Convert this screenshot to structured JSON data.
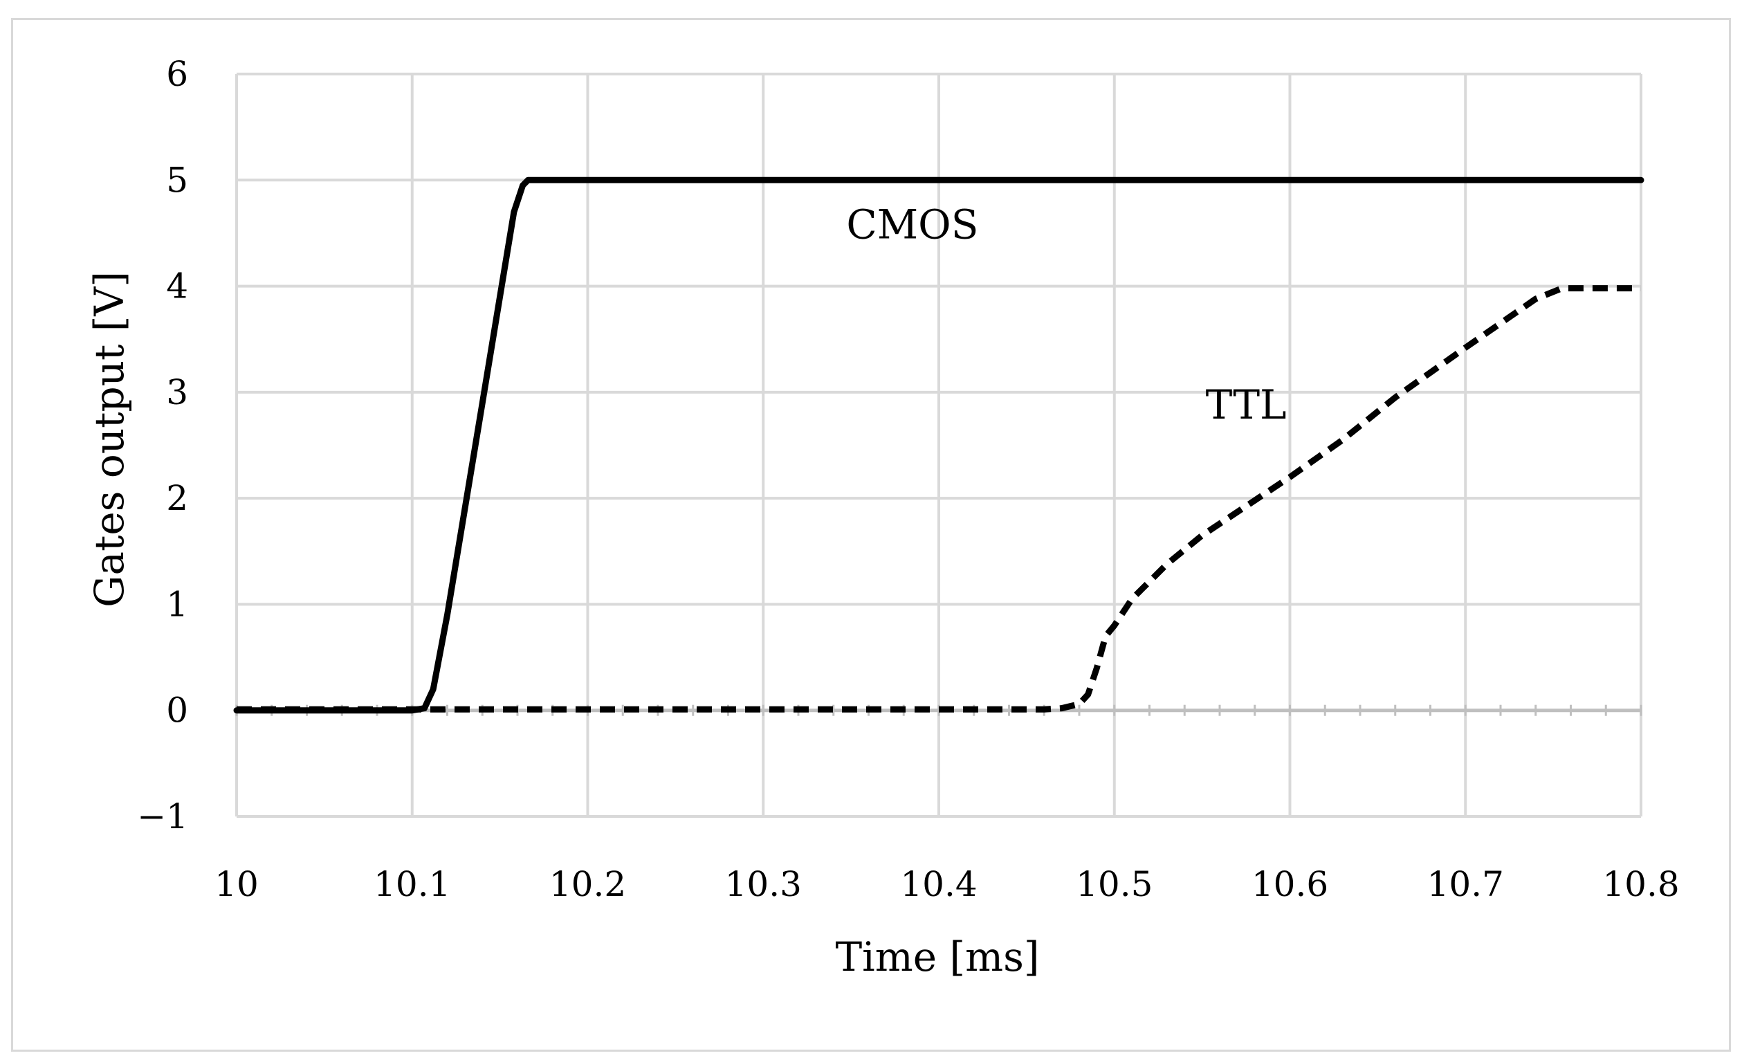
{
  "chart_data": {
    "type": "line",
    "title": "",
    "xlabel": "Time [ms]",
    "ylabel": "Gates output [V]",
    "xlim": [
      10,
      10.8
    ],
    "ylim": [
      -1,
      6
    ],
    "x_ticks": [
      "10",
      "10.1",
      "10.2",
      "10.3",
      "10.4",
      "10.5",
      "10.6",
      "10.7",
      "10.8"
    ],
    "y_ticks": [
      "−1",
      "0",
      "1",
      "2",
      "3",
      "4",
      "5",
      "6"
    ],
    "grid": true,
    "series": [
      {
        "name": "CMOS",
        "style": "solid",
        "color": "#000000",
        "points": [
          [
            10.0,
            0.0
          ],
          [
            10.1,
            0.0
          ],
          [
            10.107,
            0.02
          ],
          [
            10.112,
            0.2
          ],
          [
            10.12,
            0.9
          ],
          [
            10.13,
            1.9
          ],
          [
            10.14,
            2.9
          ],
          [
            10.15,
            3.9
          ],
          [
            10.158,
            4.7
          ],
          [
            10.163,
            4.95
          ],
          [
            10.166,
            5.0
          ],
          [
            10.8,
            5.0
          ]
        ]
      },
      {
        "name": "TTL",
        "style": "dashed",
        "color": "#000000",
        "points": [
          [
            10.0,
            0.01
          ],
          [
            10.46,
            0.01
          ],
          [
            10.47,
            0.02
          ],
          [
            10.48,
            0.06
          ],
          [
            10.485,
            0.15
          ],
          [
            10.49,
            0.4
          ],
          [
            10.495,
            0.7
          ],
          [
            10.5,
            0.8
          ],
          [
            10.51,
            1.05
          ],
          [
            10.53,
            1.38
          ],
          [
            10.55,
            1.65
          ],
          [
            10.58,
            1.98
          ],
          [
            10.6,
            2.2
          ],
          [
            10.63,
            2.55
          ],
          [
            10.66,
            2.95
          ],
          [
            10.7,
            3.42
          ],
          [
            10.72,
            3.65
          ],
          [
            10.74,
            3.88
          ],
          [
            10.755,
            3.98
          ],
          [
            10.8,
            3.98
          ]
        ]
      }
    ],
    "annotations": [
      {
        "text": "CMOS",
        "x": 10.385,
        "y": 4.45
      },
      {
        "text": "TTL",
        "x": 10.575,
        "y": 2.75
      }
    ]
  }
}
